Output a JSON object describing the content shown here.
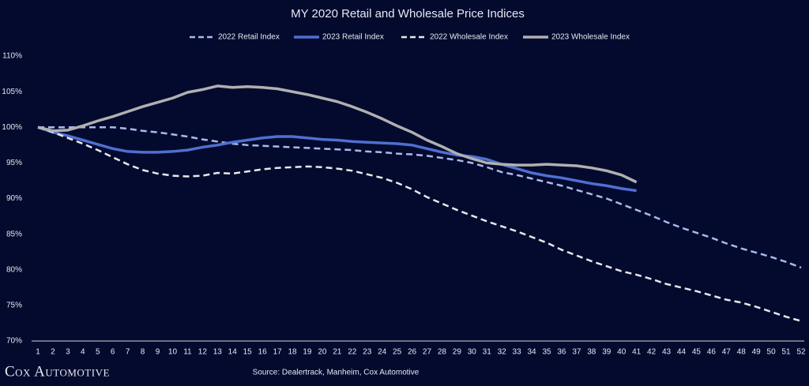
{
  "chart_data": {
    "type": "line",
    "title": "MY 2020 Retail and Wholesale Price Indices",
    "source": "Source: Dealertrack, Manheim, Cox Automotive",
    "brand": "Cox Automotive",
    "x": [
      1,
      2,
      3,
      4,
      5,
      6,
      7,
      8,
      9,
      10,
      11,
      12,
      13,
      14,
      15,
      16,
      17,
      18,
      19,
      20,
      21,
      22,
      23,
      24,
      25,
      26,
      27,
      28,
      29,
      30,
      31,
      32,
      33,
      34,
      35,
      36,
      37,
      38,
      39,
      40,
      41,
      42,
      43,
      44,
      45,
      46,
      47,
      48,
      49,
      50,
      51,
      52
    ],
    "xlim": [
      1,
      52
    ],
    "ylim": [
      70,
      110
    ],
    "yticks": [
      {
        "value": 70,
        "label": "70%"
      },
      {
        "value": 75,
        "label": "75%"
      },
      {
        "value": 80,
        "label": "80%"
      },
      {
        "value": 85,
        "label": "85%"
      },
      {
        "value": 90,
        "label": "90%"
      },
      {
        "value": 95,
        "label": "95%"
      },
      {
        "value": 100,
        "label": "100%"
      },
      {
        "value": 105,
        "label": "105%"
      },
      {
        "value": 110,
        "label": "110%"
      }
    ],
    "series": [
      {
        "name": "2022 Retail Index",
        "color": "#a9b9ea",
        "dashed": true,
        "values": [
          100,
          100,
          100,
          100,
          100,
          100,
          99.8,
          99.5,
          99.3,
          99,
          98.7,
          98.3,
          98,
          97.7,
          97.5,
          97.4,
          97.3,
          97.2,
          97.1,
          97,
          96.9,
          96.8,
          96.6,
          96.5,
          96.3,
          96.2,
          96,
          95.7,
          95.4,
          95,
          94.4,
          93.7,
          93.3,
          92.8,
          92.3,
          91.8,
          91.2,
          90.6,
          90,
          89.2,
          88.4,
          87.6,
          86.7,
          85.9,
          85.2,
          84.5,
          83.7,
          83,
          82.4,
          81.8,
          81.1,
          80.3
        ]
      },
      {
        "name": "2023 Retail Index",
        "color": "#4f6fd0",
        "dashed": false,
        "values": [
          100,
          99.3,
          98.8,
          98.2,
          97.6,
          97,
          96.6,
          96.5,
          96.5,
          96.6,
          96.8,
          97.2,
          97.5,
          97.9,
          98.2,
          98.5,
          98.7,
          98.7,
          98.5,
          98.3,
          98.2,
          98,
          97.9,
          97.8,
          97.7,
          97.5,
          97,
          96.5,
          96.1,
          95.9,
          95.5,
          94.8,
          94.2,
          93.6,
          93.2,
          92.9,
          92.5,
          92.1,
          91.8,
          91.4,
          91.1,
          null,
          null,
          null,
          null,
          null,
          null,
          null,
          null,
          null,
          null,
          null
        ]
      },
      {
        "name": "2022 Wholesale Index",
        "color": "#e8e8e8",
        "dashed": true,
        "values": [
          100,
          99.3,
          98.5,
          97.7,
          96.8,
          95.8,
          94.8,
          94,
          93.5,
          93.2,
          93.1,
          93.2,
          93.6,
          93.5,
          93.8,
          94.1,
          94.3,
          94.4,
          94.5,
          94.4,
          94.2,
          93.9,
          93.4,
          92.9,
          92.2,
          91.3,
          90.2,
          89.3,
          88.4,
          87.6,
          86.8,
          86.1,
          85.4,
          84.6,
          83.8,
          82.8,
          82,
          81.2,
          80.5,
          79.8,
          79.3,
          78.7,
          78,
          77.5,
          77,
          76.4,
          75.8,
          75.4,
          74.8,
          74.1,
          73.4,
          72.8
        ]
      },
      {
        "name": "2023 Wholesale Index",
        "color": "#b0b0b0",
        "dashed": false,
        "values": [
          100,
          99.5,
          99.6,
          100.2,
          100.9,
          101.5,
          102.2,
          102.9,
          103.5,
          104.1,
          104.9,
          105.3,
          105.8,
          105.6,
          105.7,
          105.6,
          105.4,
          105,
          104.6,
          104.1,
          103.6,
          102.9,
          102.1,
          101.2,
          100.2,
          99.3,
          98.2,
          97.3,
          96.3,
          95.6,
          95,
          94.8,
          94.7,
          94.7,
          94.8,
          94.7,
          94.6,
          94.3,
          93.9,
          93.3,
          92.3,
          null,
          null,
          null,
          null,
          null,
          null,
          null,
          null,
          null,
          null,
          null
        ]
      }
    ]
  }
}
